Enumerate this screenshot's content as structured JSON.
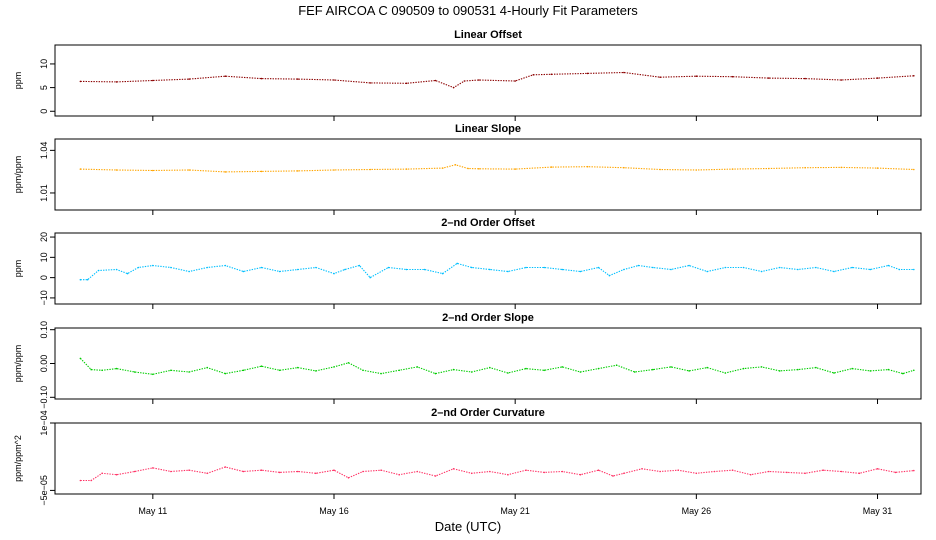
{
  "title": "FEF   AIRCOA C   090509 to 090531   4-Hourly Fit Parameters",
  "x_axis": {
    "label": "Date (UTC)",
    "range": [
      8.3,
      32.2
    ],
    "ticks": [
      {
        "label": "May 11",
        "value": 11
      },
      {
        "label": "May 16",
        "value": 16
      },
      {
        "label": "May 21",
        "value": 21
      },
      {
        "label": "May 26",
        "value": 26
      },
      {
        "label": "May 31",
        "value": 31
      }
    ]
  },
  "chart_data": [
    {
      "type": "line",
      "title": "Linear Offset",
      "ylabel": "ppm",
      "color": "#8b0000",
      "ylim": [
        -1,
        14
      ],
      "yticks": [
        {
          "label": "0",
          "value": 0
        },
        {
          "label": "5",
          "value": 5
        },
        {
          "label": "10",
          "value": 10
        }
      ],
      "x": [
        9.0,
        10.0,
        11.0,
        12.0,
        13.0,
        14.0,
        15.0,
        16.0,
        17.0,
        18.0,
        18.8,
        19.3,
        19.6,
        20.0,
        21.0,
        21.5,
        22.0,
        23.0,
        24.0,
        25.0,
        26.0,
        27.0,
        28.0,
        29.0,
        30.0,
        31.0,
        32.0
      ],
      "values": [
        6.3,
        6.2,
        6.5,
        6.8,
        7.4,
        6.9,
        6.8,
        6.6,
        6.0,
        5.9,
        6.5,
        5.0,
        6.4,
        6.6,
        6.4,
        7.7,
        7.8,
        8.0,
        8.2,
        7.2,
        7.4,
        7.3,
        7.0,
        6.9,
        6.6,
        7.0,
        7.5
      ]
    },
    {
      "type": "line",
      "title": "Linear Slope",
      "ylabel": "ppm/ppm",
      "color": "#ffa500",
      "ylim": [
        0.998,
        1.048
      ],
      "yticks": [
        {
          "label": "1.01",
          "value": 1.01
        },
        {
          "label": "1.04",
          "value": 1.04
        }
      ],
      "x": [
        9.0,
        10.0,
        11.0,
        12.0,
        13.0,
        14.0,
        15.0,
        16.0,
        17.0,
        18.0,
        19.0,
        19.35,
        19.7,
        20.0,
        21.0,
        22.0,
        23.0,
        24.0,
        25.0,
        26.0,
        27.0,
        28.0,
        29.0,
        30.0,
        31.0,
        32.0
      ],
      "values": [
        1.0268,
        1.0262,
        1.0258,
        1.0262,
        1.0248,
        1.0252,
        1.0255,
        1.0262,
        1.0265,
        1.0268,
        1.0275,
        1.0298,
        1.0272,
        1.027,
        1.0268,
        1.0282,
        1.0285,
        1.0278,
        1.0265,
        1.0262,
        1.0268,
        1.0272,
        1.0278,
        1.028,
        1.0275,
        1.0265
      ]
    },
    {
      "type": "line",
      "title": "2–nd Order Offset",
      "ylabel": "ppm",
      "color": "#00bfff",
      "ylim": [
        -13,
        22
      ],
      "yticks": [
        {
          "label": "−10",
          "value": -10
        },
        {
          "label": "0",
          "value": 0
        },
        {
          "label": "10",
          "value": 10
        },
        {
          "label": "20",
          "value": 20
        }
      ],
      "x": [
        9.0,
        9.2,
        9.5,
        10.0,
        10.3,
        10.6,
        11.0,
        11.5,
        12.0,
        12.5,
        13.0,
        13.5,
        14.0,
        14.5,
        15.0,
        15.5,
        16.0,
        16.3,
        16.7,
        17.0,
        17.5,
        18.0,
        18.5,
        19.0,
        19.4,
        19.8,
        20.3,
        20.8,
        21.3,
        21.8,
        22.3,
        22.8,
        23.3,
        23.6,
        24.0,
        24.4,
        24.8,
        25.3,
        25.8,
        26.3,
        26.8,
        27.3,
        27.8,
        28.3,
        28.8,
        29.3,
        29.8,
        30.3,
        30.8,
        31.3,
        31.6,
        32.0
      ],
      "values": [
        -1,
        -1,
        3.5,
        4,
        2,
        5,
        6,
        5,
        3,
        5,
        6,
        3,
        5,
        3,
        4,
        5,
        2,
        4,
        6,
        0,
        5,
        4,
        4,
        2,
        7,
        5,
        4,
        3,
        5,
        5,
        4,
        3,
        5,
        1,
        4,
        6,
        5,
        4,
        6,
        3,
        5,
        5,
        3,
        5,
        4,
        5,
        3,
        5,
        4,
        6,
        4,
        4
      ]
    },
    {
      "type": "line",
      "title": "2–nd Order Slope",
      "ylabel": "ppm/ppm",
      "color": "#00cd00",
      "ylim": [
        -0.105,
        0.105
      ],
      "yticks": [
        {
          "label": "−0.10",
          "value": -0.1
        },
        {
          "label": "0.00",
          "value": 0
        },
        {
          "label": "0.10",
          "value": 0.1
        }
      ],
      "x": [
        9.0,
        9.3,
        9.6,
        10.0,
        10.5,
        11.0,
        11.5,
        12.0,
        12.5,
        13.0,
        13.5,
        14.0,
        14.5,
        15.0,
        15.5,
        16.0,
        16.4,
        16.8,
        17.3,
        17.8,
        18.3,
        18.8,
        19.3,
        19.8,
        20.3,
        20.8,
        21.3,
        21.8,
        22.3,
        22.8,
        23.3,
        23.8,
        24.3,
        24.8,
        25.3,
        25.8,
        26.3,
        26.8,
        27.3,
        27.8,
        28.3,
        28.8,
        29.3,
        29.8,
        30.3,
        30.8,
        31.3,
        31.7,
        32.0
      ],
      "values": [
        0.015,
        -0.018,
        -0.02,
        -0.015,
        -0.025,
        -0.032,
        -0.02,
        -0.025,
        -0.012,
        -0.03,
        -0.02,
        -0.008,
        -0.02,
        -0.012,
        -0.022,
        -0.01,
        0.002,
        -0.02,
        -0.03,
        -0.02,
        -0.01,
        -0.03,
        -0.018,
        -0.025,
        -0.012,
        -0.028,
        -0.015,
        -0.02,
        -0.01,
        -0.025,
        -0.015,
        -0.005,
        -0.025,
        -0.018,
        -0.01,
        -0.022,
        -0.012,
        -0.028,
        -0.015,
        -0.01,
        -0.022,
        -0.018,
        -0.012,
        -0.028,
        -0.015,
        -0.022,
        -0.018,
        -0.03,
        -0.02
      ]
    },
    {
      "type": "line",
      "title": "2–nd Order Curvature",
      "ylabel": "ppm/ppm^2",
      "color": "#ff3366",
      "ylim": [
        -5.8e-05,
        0.0001
      ],
      "yticks": [
        {
          "label": "−5e−05",
          "value": -5e-05
        },
        {
          "label": "1e−04",
          "value": 0.0001
        }
      ],
      "x": [
        9.0,
        9.3,
        9.6,
        10.0,
        10.5,
        11.0,
        11.5,
        12.0,
        12.5,
        13.0,
        13.5,
        14.0,
        14.5,
        15.0,
        15.5,
        16.0,
        16.4,
        16.8,
        17.3,
        17.8,
        18.3,
        18.8,
        19.3,
        19.8,
        20.3,
        20.8,
        21.3,
        21.8,
        22.3,
        22.8,
        23.3,
        23.7,
        24.0,
        24.5,
        25.0,
        25.5,
        26.0,
        26.5,
        27.0,
        27.5,
        28.0,
        28.5,
        29.0,
        29.5,
        30.0,
        30.5,
        31.0,
        31.5,
        32.0
      ],
      "values": [
        -2.8e-05,
        -2.8e-05,
        -1.2e-05,
        -1.5e-05,
        -8e-06,
        -0.0,
        -8e-06,
        -5e-06,
        -1.2e-05,
        2e-06,
        -8e-06,
        -5e-06,
        -1e-05,
        -8e-06,
        -1.2e-05,
        -5e-06,
        -2.2e-05,
        -8e-06,
        -5e-06,
        -1.5e-05,
        -8e-06,
        -1.8e-05,
        -2e-06,
        -1.2e-05,
        -8e-06,
        -1.5e-05,
        -5e-06,
        -1e-05,
        -8e-06,
        -1.5e-05,
        -5e-06,
        -1.8e-05,
        -1.2e-05,
        -2e-06,
        -8e-06,
        -5e-06,
        -1.2e-05,
        -8e-06,
        -5e-06,
        -1.5e-05,
        -8e-06,
        -1e-05,
        -1.2e-05,
        -5e-06,
        -8e-06,
        -1.2e-05,
        -2e-06,
        -1e-05,
        -6e-06
      ]
    }
  ]
}
